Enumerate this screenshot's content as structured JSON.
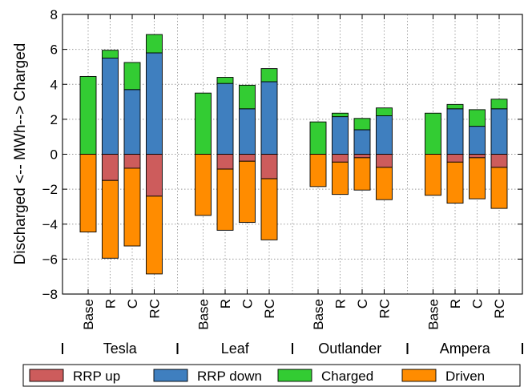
{
  "chart_data": {
    "type": "bar",
    "stacked": true,
    "ylabel": "Discharged <-- MWh--> Charged",
    "ylim": [
      -8,
      8
    ],
    "yticks": [
      -8,
      -6,
      -4,
      -2,
      0,
      2,
      4,
      6,
      8
    ],
    "grid": true,
    "legend_position": "bottom",
    "groups": [
      "Tesla",
      "Leaf",
      "Outlander",
      "Ampera"
    ],
    "categories": [
      "Base",
      "R",
      "C",
      "RC"
    ],
    "series": [
      {
        "name": "RRP up",
        "color": "#cd5c5c",
        "direction": "negative",
        "values": [
          [
            0,
            1.5,
            0.8,
            2.4
          ],
          [
            0,
            0.85,
            0.4,
            1.4
          ],
          [
            0,
            0.45,
            0.2,
            0.75
          ],
          [
            0,
            0.45,
            0.2,
            0.75
          ]
        ]
      },
      {
        "name": "RRP down",
        "color": "#3f7fbf",
        "direction": "positive",
        "values": [
          [
            0,
            5.5,
            3.7,
            5.8
          ],
          [
            0,
            4.05,
            2.6,
            4.15
          ],
          [
            0,
            2.15,
            1.4,
            2.2
          ],
          [
            0,
            2.6,
            1.6,
            2.6
          ]
        ]
      },
      {
        "name": "Charged",
        "color": "#33cc33",
        "direction": "positive",
        "values": [
          [
            4.45,
            0.45,
            1.55,
            1.05
          ],
          [
            3.5,
            0.35,
            1.35,
            0.75
          ],
          [
            1.85,
            0.2,
            0.65,
            0.45
          ],
          [
            2.35,
            0.25,
            0.95,
            0.55
          ]
        ]
      },
      {
        "name": "Driven",
        "color": "#ff8c00",
        "direction": "negative",
        "values": [
          [
            4.45,
            4.45,
            4.45,
            4.45
          ],
          [
            3.5,
            3.5,
            3.5,
            3.5
          ],
          [
            1.85,
            1.85,
            1.85,
            1.85
          ],
          [
            2.35,
            2.35,
            2.35,
            2.35
          ]
        ]
      }
    ],
    "legend_order": [
      "RRP up",
      "RRP down",
      "Charged",
      "Driven"
    ]
  }
}
